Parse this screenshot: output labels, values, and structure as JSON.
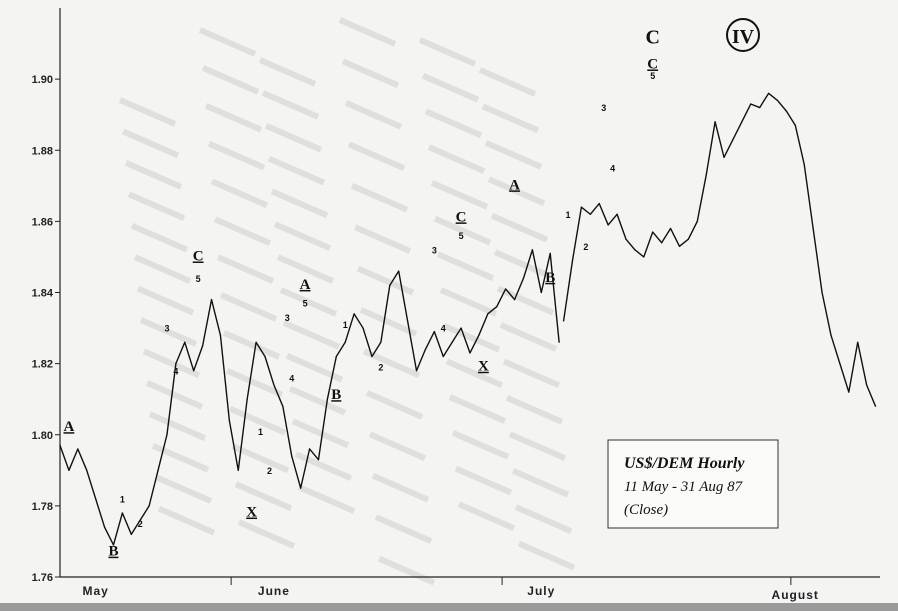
{
  "chart_data": {
    "type": "line",
    "title": "US$/DEM Hourly",
    "subtitle": "11 May - 31 Aug 87",
    "note": "(Close)",
    "ylim": [
      1.76,
      1.92
    ],
    "yticks": [
      "1.76",
      "1.78",
      "1.80",
      "1.82",
      "1.84",
      "1.86",
      "1.88",
      "1.90"
    ],
    "months": [
      "May",
      "June",
      "July",
      "August"
    ],
    "series": [
      {
        "x": [
          0,
          2,
          4,
          6,
          8,
          10,
          12,
          14,
          16,
          18,
          20,
          22,
          24,
          26,
          28,
          30,
          32,
          34,
          36,
          38,
          40,
          42,
          44,
          46,
          48,
          50,
          52,
          54,
          56,
          58,
          60,
          62,
          64,
          66,
          68,
          70,
          72,
          74,
          76,
          78,
          80,
          82,
          84,
          86,
          88,
          90,
          92,
          94,
          96,
          98,
          100,
          102,
          104,
          106,
          108,
          110,
          112
        ],
        "y": [
          1.797,
          1.79,
          1.796,
          1.79,
          1.782,
          1.774,
          1.769,
          1.778,
          1.772,
          1.776,
          1.78,
          1.79,
          1.8,
          1.82,
          1.826,
          1.818,
          1.825,
          1.838,
          1.828,
          1.804,
          1.79,
          1.81,
          1.826,
          1.822,
          1.814,
          1.808,
          1.794,
          1.785,
          1.796,
          1.793,
          1.81,
          1.822,
          1.826,
          1.834,
          1.83,
          1.822,
          1.826,
          1.842,
          1.846,
          1.832,
          1.818,
          1.824,
          1.829,
          1.822,
          1.826,
          1.83,
          1.823,
          1.828,
          1.834,
          1.836,
          1.841,
          1.838,
          1.844,
          1.852,
          1.84,
          1.851,
          1.826
        ]
      },
      {
        "x": [
          113,
          115,
          117,
          119,
          121,
          123,
          125,
          127,
          129,
          131,
          133,
          135,
          137,
          139,
          141,
          143,
          145,
          147,
          149,
          151,
          153,
          155,
          157,
          159,
          161,
          163,
          165,
          167,
          169,
          171,
          173,
          175,
          177,
          179,
          181,
          183
        ],
        "y": [
          1.832,
          1.849,
          1.864,
          1.862,
          1.865,
          1.859,
          1.862,
          1.855,
          1.852,
          1.85,
          1.857,
          1.854,
          1.858,
          1.853,
          1.855,
          1.86,
          1.873,
          1.888,
          1.878,
          1.883,
          1.888,
          1.893,
          1.892,
          1.896,
          1.894,
          1.891,
          1.887,
          1.876,
          1.858,
          1.84,
          1.828,
          1.82,
          1.812,
          1.826,
          1.814,
          1.808
        ]
      }
    ],
    "wave_labels": [
      {
        "text": "A",
        "x": 2,
        "y": 1.801,
        "size": "big"
      },
      {
        "text": "B",
        "x": 12,
        "y": 1.766,
        "size": "big"
      },
      {
        "text": "1",
        "x": 14,
        "y": 1.781,
        "size": "small"
      },
      {
        "text": "2",
        "x": 18,
        "y": 1.774,
        "size": "small"
      },
      {
        "text": "3",
        "x": 24,
        "y": 1.829,
        "size": "small"
      },
      {
        "text": "4",
        "x": 26,
        "y": 1.817,
        "size": "small"
      },
      {
        "text": "C",
        "x": 31,
        "y": 1.849,
        "size": "big"
      },
      {
        "text": "5",
        "x": 31,
        "y": 1.843,
        "size": "small"
      },
      {
        "text": "1",
        "x": 45,
        "y": 1.8,
        "size": "small"
      },
      {
        "text": "2",
        "x": 47,
        "y": 1.789,
        "size": "small"
      },
      {
        "text": "X",
        "x": 43,
        "y": 1.777,
        "size": "big"
      },
      {
        "text": "3",
        "x": 51,
        "y": 1.832,
        "size": "small"
      },
      {
        "text": "4",
        "x": 52,
        "y": 1.815,
        "size": "small"
      },
      {
        "text": "A",
        "x": 55,
        "y": 1.841,
        "size": "big"
      },
      {
        "text": "5",
        "x": 55,
        "y": 1.836,
        "size": "small"
      },
      {
        "text": "1",
        "x": 64,
        "y": 1.83,
        "size": "small"
      },
      {
        "text": "B",
        "x": 62,
        "y": 1.81,
        "size": "big"
      },
      {
        "text": "2",
        "x": 72,
        "y": 1.818,
        "size": "small"
      },
      {
        "text": "3",
        "x": 84,
        "y": 1.851,
        "size": "small"
      },
      {
        "text": "4",
        "x": 86,
        "y": 1.829,
        "size": "small"
      },
      {
        "text": "C",
        "x": 90,
        "y": 1.86,
        "size": "big"
      },
      {
        "text": "5",
        "x": 90,
        "y": 1.855,
        "size": "small"
      },
      {
        "text": "X",
        "x": 95,
        "y": 1.818,
        "size": "big"
      },
      {
        "text": "A",
        "x": 102,
        "y": 1.869,
        "size": "big"
      },
      {
        "text": "1",
        "x": 114,
        "y": 1.861,
        "size": "small"
      },
      {
        "text": "B",
        "x": 110,
        "y": 1.843,
        "size": "big"
      },
      {
        "text": "2",
        "x": 118,
        "y": 1.852,
        "size": "small"
      },
      {
        "text": "3",
        "x": 122,
        "y": 1.891,
        "size": "small"
      },
      {
        "text": "4",
        "x": 124,
        "y": 1.874,
        "size": "small"
      },
      {
        "text": "C",
        "x": 133,
        "y": 1.91,
        "size": "huge"
      },
      {
        "text": "C",
        "x": 133,
        "y": 1.903,
        "size": "big"
      },
      {
        "text": "5",
        "x": 133,
        "y": 1.9,
        "size": "small"
      }
    ],
    "circle_label": "IV",
    "grid": false
  }
}
